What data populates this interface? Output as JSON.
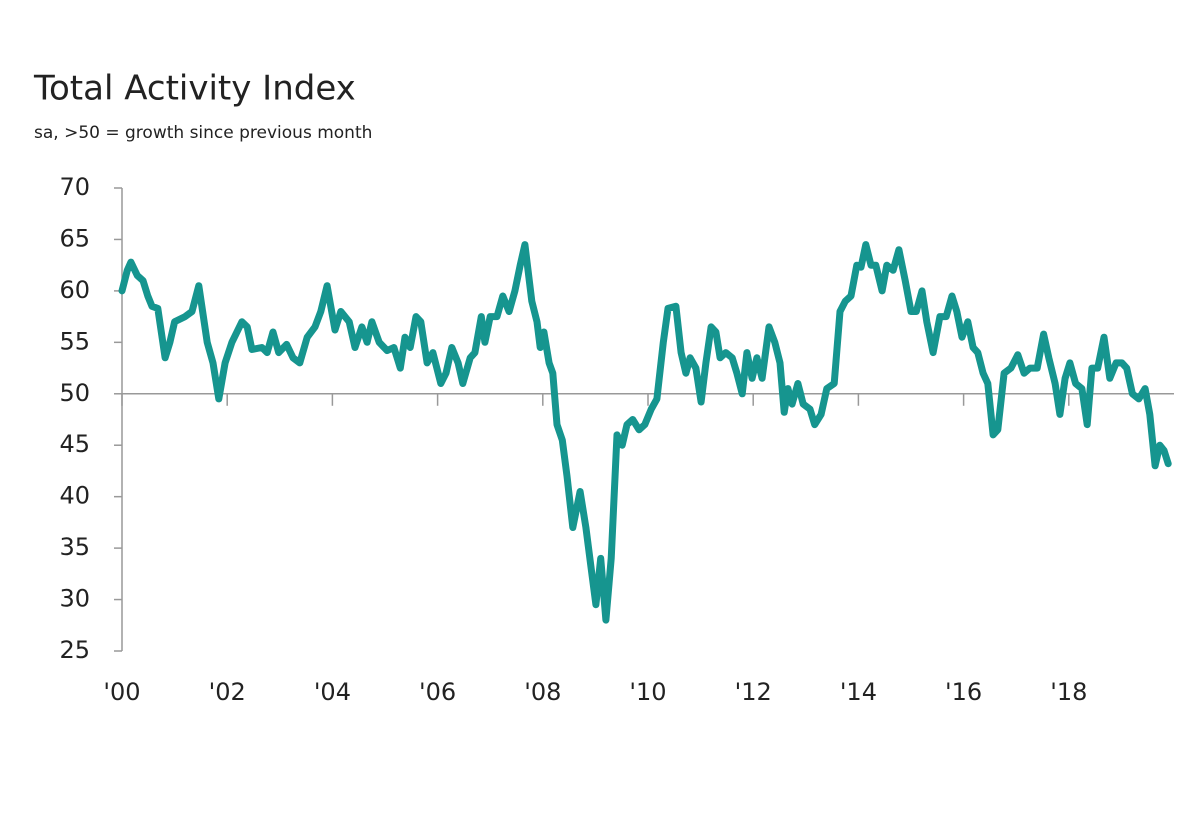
{
  "chart_data": {
    "type": "line",
    "title": "Total Activity Index",
    "subtitle": "sa, >50 = growth since previous month",
    "color": "#16958f",
    "reference_line": 50,
    "x": [
      2000.0,
      2000.1,
      2000.17,
      2000.29,
      2000.4,
      2000.49,
      2000.57,
      2000.68,
      2000.82,
      2000.91,
      2001.0,
      2001.2,
      2001.33,
      2001.46,
      2001.62,
      2001.73,
      2001.84,
      2001.96,
      2002.09,
      2002.28,
      2002.38,
      2002.47,
      2002.66,
      2002.76,
      2002.87,
      2002.98,
      2003.13,
      2003.25,
      2003.38,
      2003.52,
      2003.67,
      2003.78,
      2003.9,
      2004.05,
      2004.16,
      2004.32,
      2004.43,
      2004.56,
      2004.66,
      2004.75,
      2004.89,
      2005.04,
      2005.17,
      2005.29,
      2005.38,
      2005.48,
      2005.59,
      2005.68,
      2005.8,
      2005.91,
      2006.06,
      2006.16,
      2006.27,
      2006.39,
      2006.48,
      2006.62,
      2006.71,
      2006.83,
      2006.9,
      2007.0,
      2007.13,
      2007.24,
      2007.36,
      2007.47,
      2007.57,
      2007.66,
      2007.79,
      2007.89,
      2007.95,
      2008.02,
      2008.12,
      2008.19,
      2008.27,
      2008.37,
      2008.46,
      2008.57,
      2008.71,
      2008.82,
      2008.92,
      2009.01,
      2009.1,
      2009.2,
      2009.3,
      2009.41,
      2009.51,
      2009.6,
      2009.71,
      2009.83,
      2009.94,
      2010.06,
      2010.17,
      2010.29,
      2010.38,
      2010.53,
      2010.63,
      2010.72,
      2010.8,
      2010.91,
      2011.01,
      2011.1,
      2011.2,
      2011.29,
      2011.37,
      2011.48,
      2011.6,
      2011.69,
      2011.79,
      2011.88,
      2011.98,
      2012.07,
      2012.17,
      2012.3,
      2012.41,
      2012.51,
      2012.59,
      2012.66,
      2012.74,
      2012.85,
      2012.95,
      2013.08,
      2013.17,
      2013.29,
      2013.4,
      2013.54,
      2013.65,
      2013.75,
      2013.86,
      2013.97,
      2014.05,
      2014.14,
      2014.24,
      2014.33,
      2014.45,
      2014.54,
      2014.66,
      2014.77,
      2014.89,
      2015.0,
      2015.1,
      2015.21,
      2015.3,
      2015.42,
      2015.55,
      2015.67,
      2015.78,
      2015.87,
      2015.97,
      2016.08,
      2016.18,
      2016.27,
      2016.37,
      2016.46,
      2016.56,
      2016.65,
      2016.77,
      2016.9,
      2017.03,
      2017.15,
      2017.26,
      2017.4,
      2017.52,
      2017.62,
      2017.74,
      2017.83,
      2017.93,
      2018.02,
      2018.13,
      2018.25,
      2018.35,
      2018.44,
      2018.55,
      2018.67,
      2018.78,
      2018.9,
      2019.01,
      2019.1,
      2019.21,
      2019.33,
      2019.45,
      2019.54,
      2019.64,
      2019.73,
      2019.81,
      2019.89
    ],
    "values": [
      60,
      62,
      62.8,
      61.5,
      61,
      59.5,
      58.5,
      58.3,
      53.5,
      55,
      57,
      57.5,
      58,
      60.5,
      55,
      53,
      49.5,
      53,
      55,
      57,
      56.5,
      54.3,
      54.5,
      54,
      56,
      54,
      54.8,
      53.5,
      53,
      55.5,
      56.5,
      58,
      60.5,
      56.2,
      58,
      57,
      54.5,
      56.5,
      55,
      57,
      55,
      54.2,
      54.5,
      52.5,
      55.5,
      54.5,
      57.5,
      57,
      53,
      54,
      51,
      52,
      54.5,
      53,
      51,
      53.5,
      54,
      57.5,
      55,
      57.5,
      57.5,
      59.5,
      58,
      60,
      62.5,
      64.5,
      59,
      57,
      54.5,
      56,
      53,
      52,
      47,
      45.5,
      42,
      37,
      40.5,
      37,
      33,
      29.5,
      34,
      28,
      34,
      46,
      45,
      47,
      47.5,
      46.5,
      47,
      48.5,
      49.5,
      55,
      58.3,
      58.5,
      54,
      52,
      53.5,
      52.5,
      49.2,
      53,
      56.5,
      56,
      53.5,
      54,
      53.5,
      52,
      50,
      54,
      51.5,
      53.5,
      51.5,
      56.5,
      55,
      53,
      48.2,
      50.5,
      49,
      51,
      49,
      48.5,
      47,
      48,
      50.5,
      51,
      58,
      59,
      59.5,
      62.5,
      62.3,
      64.5,
      62.5,
      62.5,
      60,
      62.5,
      62,
      64,
      61,
      58,
      58,
      60,
      57,
      54,
      57.5,
      57.5,
      59.5,
      58,
      55.5,
      57,
      54.5,
      54,
      52,
      51,
      46,
      46.5,
      52,
      52.5,
      53.8,
      52,
      52.5,
      52.5,
      55.8,
      53.5,
      51,
      48,
      51.5,
      53,
      51,
      50.5,
      47,
      52.5,
      52.5,
      55.5,
      51.5,
      53,
      53,
      52.5,
      50,
      49.5,
      50.5,
      48,
      43,
      45,
      44.5,
      43.2
    ],
    "xlim": [
      2000,
      2020
    ],
    "xticks": [
      {
        "value": 2000,
        "label": "'00"
      },
      {
        "value": 2002,
        "label": "'02"
      },
      {
        "value": 2004,
        "label": "'04"
      },
      {
        "value": 2006,
        "label": "'06"
      },
      {
        "value": 2008,
        "label": "'08"
      },
      {
        "value": 2010,
        "label": "'10"
      },
      {
        "value": 2012,
        "label": "'12"
      },
      {
        "value": 2014,
        "label": "'14"
      },
      {
        "value": 2016,
        "label": "'16"
      },
      {
        "value": 2018,
        "label": "'18"
      }
    ],
    "ylim": [
      25,
      70
    ],
    "yticks": [
      25,
      30,
      35,
      40,
      45,
      50,
      55,
      60,
      65,
      70
    ]
  }
}
